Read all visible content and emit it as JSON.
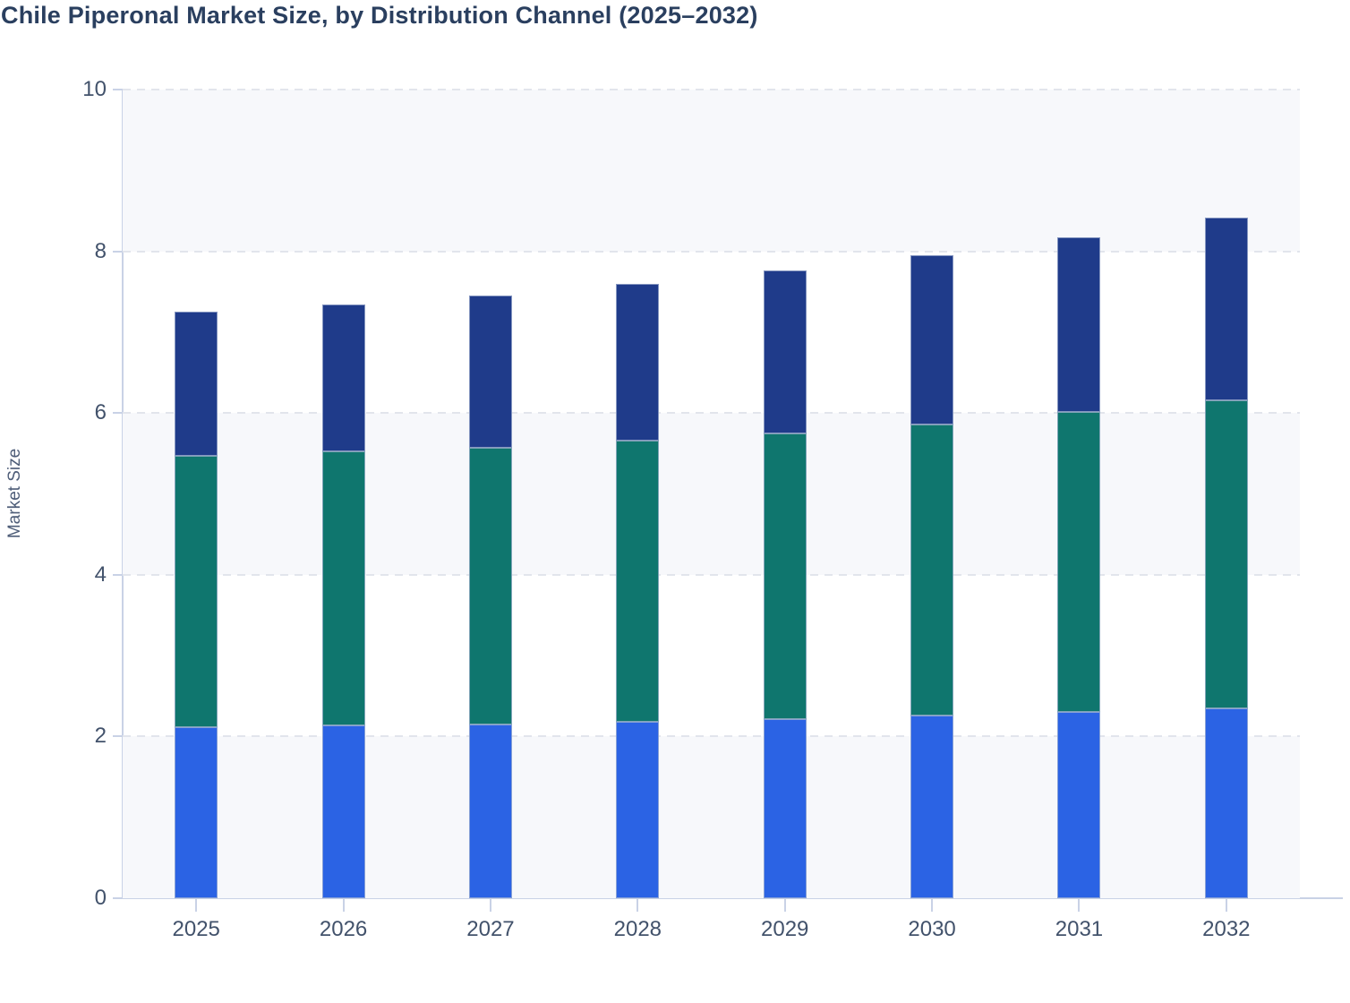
{
  "chart_data": {
    "type": "bar",
    "stacked": true,
    "title": "Chile Piperonal Market Size, by Distribution Channel (2025–2032)",
    "xlabel": "",
    "ylabel": "Market Size",
    "ylim": [
      0,
      10
    ],
    "yticks": [
      0,
      2,
      4,
      6,
      8,
      10
    ],
    "grid": "dashed horizontal gridlines with alternating shaded bands",
    "legend": "none",
    "categories": [
      "2025",
      "2026",
      "2027",
      "2028",
      "2029",
      "2030",
      "2031",
      "2032"
    ],
    "series": [
      {
        "name": "bottom-segment-blue",
        "color": "#2b63e4",
        "values": [
          2.12,
          2.14,
          2.15,
          2.18,
          2.21,
          2.26,
          2.3,
          2.35
        ]
      },
      {
        "name": "middle-segment-teal",
        "color": "#0f766e",
        "values": [
          3.35,
          3.39,
          3.42,
          3.48,
          3.54,
          3.6,
          3.71,
          3.81
        ]
      },
      {
        "name": "top-segment-navy",
        "color": "#1f3b8a",
        "values": [
          1.78,
          1.81,
          1.88,
          1.94,
          2.01,
          2.09,
          2.16,
          2.26
        ]
      }
    ],
    "totals": [
      7.25,
      7.34,
      7.45,
      7.6,
      7.76,
      7.95,
      8.17,
      8.42
    ]
  },
  "styles": {
    "title_color": "#2a3f5f",
    "tick_label_color": "#42526b",
    "axis_line_color": "#c9d2e6",
    "gridline_color": "#e2e5ec",
    "band_fill": "#f7f8fb"
  }
}
